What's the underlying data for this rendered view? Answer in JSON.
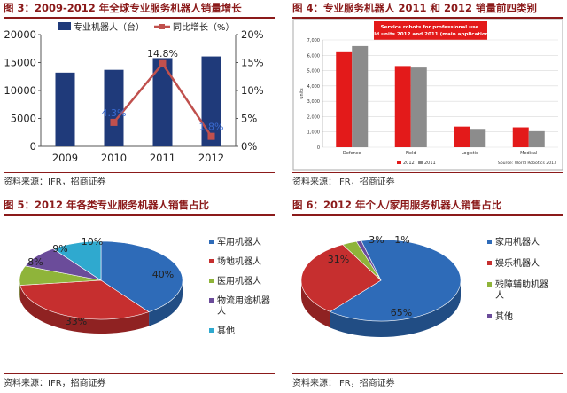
{
  "panels": {
    "fig3": {
      "title": "图 3：2009-2012 年全球专业服务机器人销量增长",
      "source": "资料来源：IFR，招商证券"
    },
    "fig4": {
      "title": "图 4：专业服务机器人 2011 和 2012 销量前四类别",
      "source": "资料来源：IFR，招商证券"
    },
    "fig5": {
      "title": "图 5：2012 年各类专业服务机器人销售占比",
      "source": "资料来源：IFR，招商证券"
    },
    "fig6": {
      "title": "图 6：2012 年个人/家用服务机器人销售占比",
      "source": "资料来源：IFR，招商证券"
    }
  },
  "colors": {
    "title_red": "#8b1a1a",
    "bar_navy": "#1f3a7a",
    "line_red": "#c0504d",
    "chart4_red": "#e31a1a",
    "chart4_gray": "#8c8c8c",
    "chart4_title_bg": "#e31a1a",
    "pie_blue": "#2e6bb8",
    "pie_red": "#c62f2f",
    "pie_green": "#8fb43a",
    "pie_purple": "#6b4c9a",
    "pie_cyan": "#2fa9cf"
  },
  "chart_data": [
    {
      "type": "bar",
      "categories": [
        "2009",
        "2010",
        "2011",
        "2012"
      ],
      "series": [
        {
          "name": "专业机器人（台）",
          "kind": "bar",
          "axis": "left",
          "values": [
            13200,
            13700,
            15800,
            16100
          ]
        },
        {
          "name": "同比增长（%）",
          "kind": "line",
          "axis": "right",
          "values": [
            null,
            4.3,
            14.8,
            1.8
          ]
        }
      ],
      "line_labels": [
        "",
        "4.3%",
        "14.8%",
        "1.8%"
      ],
      "y_left": {
        "ticks": [
          "0",
          "5000",
          "10000",
          "15000",
          "20000"
        ],
        "range": [
          0,
          20000
        ]
      },
      "y_right": {
        "ticks": [
          "0%",
          "5%",
          "10%",
          "15%",
          "20%"
        ],
        "range": [
          0,
          20
        ]
      }
    },
    {
      "type": "bar",
      "title": "Service robots for professional use.",
      "subtitle": "Sold units 2012 and 2011 (main applications)",
      "ylabel": "units",
      "categories": [
        "Defence",
        "Field",
        "Logistic",
        "Medical"
      ],
      "series": [
        {
          "name": "2012",
          "values": [
            6200,
            5300,
            1350,
            1300
          ]
        },
        {
          "name": "2011",
          "values": [
            6600,
            5200,
            1200,
            1050
          ]
        }
      ],
      "y_ticks": [
        "0",
        "1,000",
        "2,000",
        "3,000",
        "4,000",
        "5,000",
        "6,000",
        "7,000"
      ],
      "ylim": [
        0,
        7000
      ],
      "source_note": "Source: World Robotics 2013",
      "grid": true
    },
    {
      "type": "pie",
      "labels": [
        "军用机器人",
        "场地机器人",
        "医用机器人",
        "物流用途机器人",
        "其他"
      ],
      "values": [
        40,
        33,
        8,
        9,
        10
      ],
      "value_labels": [
        "40%",
        "33%",
        "8%",
        "9%",
        "10%"
      ]
    },
    {
      "type": "pie",
      "labels": [
        "家用机器人",
        "娱乐机器人",
        "残障辅助机器人",
        "其他"
      ],
      "values": [
        65,
        31,
        3,
        1
      ],
      "value_labels": [
        "65%",
        "31%",
        "3%",
        "1%"
      ]
    }
  ]
}
